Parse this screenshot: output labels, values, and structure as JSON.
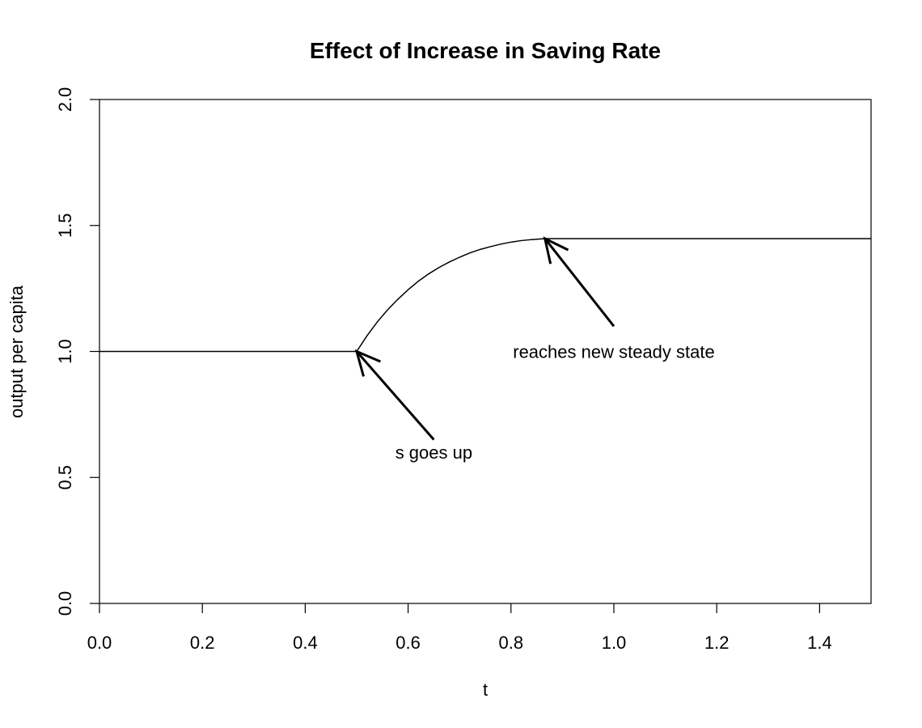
{
  "chart_data": {
    "type": "line",
    "title": "Effect of Increase in Saving Rate",
    "xlabel": "t",
    "ylabel": "output per capita",
    "xlim": [
      0,
      1.5
    ],
    "ylim": [
      0,
      2
    ],
    "xticks": [
      "0.0",
      "0.2",
      "0.4",
      "0.6",
      "0.8",
      "1.0",
      "1.2",
      "1.4"
    ],
    "yticks": [
      "0.0",
      "0.5",
      "1.0",
      "1.5",
      "2.0"
    ],
    "grid": false,
    "legend": "none",
    "series": [
      {
        "x": [
          0,
          0.5,
          0.52,
          0.54,
          0.56,
          0.58,
          0.6,
          0.62,
          0.64,
          0.66,
          0.68,
          0.7,
          0.72,
          0.74,
          0.76,
          0.78,
          0.8,
          0.82,
          0.84,
          0.866,
          1.5
        ],
        "values": [
          1.0,
          1.0,
          1.062,
          1.117,
          1.165,
          1.207,
          1.245,
          1.279,
          1.308,
          1.333,
          1.355,
          1.374,
          1.391,
          1.405,
          1.416,
          1.426,
          1.434,
          1.44,
          1.444,
          1.448,
          1.448
        ]
      }
    ],
    "annotations": [
      {
        "text": "s goes up",
        "label_x": 0.65,
        "label_y": 0.6,
        "arrow_from": [
          0.65,
          0.65
        ],
        "arrow_to": [
          0.5,
          1.0
        ]
      },
      {
        "text": "reaches new steady state",
        "label_x": 1.0,
        "label_y": 1.0,
        "arrow_from": [
          1.0,
          1.1
        ],
        "arrow_to": [
          0.866,
          1.448
        ]
      }
    ]
  }
}
